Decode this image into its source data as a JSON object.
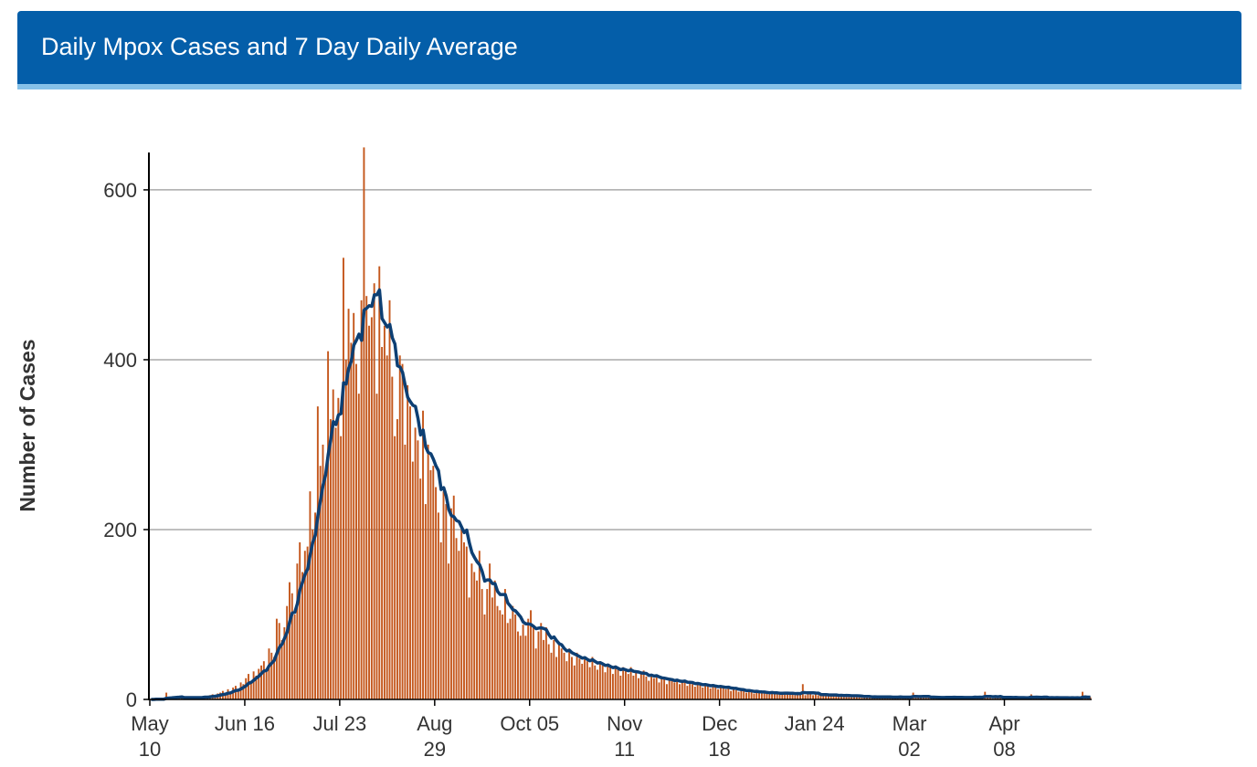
{
  "header": {
    "title": "Daily Mpox Cases and 7 Day Daily Average"
  },
  "chart_data": {
    "type": "bar",
    "title": "Daily Mpox Cases and 7 Day Daily Average",
    "xlabel": "",
    "ylabel": "Number of Cases",
    "ylim": [
      0,
      644
    ],
    "y_ticks": [
      "0",
      "200",
      "400",
      "600"
    ],
    "x_ticks": [
      [
        "May",
        "10"
      ],
      [
        "Jun 16",
        ""
      ],
      [
        "Jul 23",
        ""
      ],
      [
        "Aug",
        "29"
      ],
      [
        "Oct 05",
        ""
      ],
      [
        "Nov",
        "11"
      ],
      [
        "Dec",
        "18"
      ],
      [
        "Jan 24",
        ""
      ],
      [
        "Mar",
        "02"
      ],
      [
        "Apr",
        "08"
      ]
    ],
    "grid": "horizontal",
    "colors": {
      "bars": "#c4571c",
      "average_line": "#0d3f73",
      "header": "#045ea9",
      "grid": "#aaaaaa"
    },
    "series": [
      {
        "kind": "bar",
        "values": [
          0,
          0,
          1,
          0,
          0,
          1,
          8,
          1,
          2,
          3,
          2,
          2,
          3,
          2,
          1,
          2,
          3,
          2,
          2,
          3,
          3,
          4,
          2,
          5,
          6,
          3,
          7,
          8,
          10,
          5,
          12,
          9,
          14,
          16,
          10,
          20,
          18,
          25,
          30,
          22,
          33,
          28,
          36,
          40,
          45,
          35,
          60,
          55,
          50,
          95,
          90,
          70,
          85,
          110,
          138,
          125,
          100,
          160,
          185,
          150,
          175,
          180,
          245,
          200,
          220,
          345,
          275,
          300,
          265,
          410,
          330,
          365,
          320,
          355,
          310,
          520,
          400,
          460,
          420,
          455,
          395,
          360,
          470,
          650,
          475,
          440,
          450,
          490,
          360,
          510,
          415,
          440,
          405,
          470,
          380,
          310,
          330,
          405,
          395,
          300,
          370,
          345,
          280,
          320,
          305,
          260,
          340,
          230,
          300,
          270,
          275,
          250,
          220,
          185,
          245,
          230,
          160,
          225,
          240,
          190,
          175,
          200,
          185,
          180,
          120,
          160,
          150,
          140,
          175,
          130,
          100,
          130,
          160,
          120,
          140,
          110,
          105,
          100,
          130,
          90,
          95,
          110,
          100,
          80,
          75,
          88,
          75,
          95,
          105,
          85,
          60,
          80,
          90,
          70,
          85,
          65,
          55,
          70,
          50,
          65,
          60,
          55,
          45,
          60,
          50,
          40,
          55,
          48,
          42,
          50,
          45,
          38,
          50,
          40,
          35,
          45,
          40,
          32,
          42,
          38,
          30,
          40,
          35,
          28,
          38,
          35,
          30,
          38,
          28,
          32,
          25,
          30,
          34,
          27,
          22,
          30,
          25,
          28,
          20,
          26,
          24,
          18,
          25,
          22,
          20,
          24,
          18,
          22,
          20,
          16,
          21,
          18,
          15,
          20,
          17,
          14,
          18,
          16,
          13,
          17,
          15,
          12,
          16,
          14,
          12,
          15,
          10,
          13,
          11,
          9,
          12,
          10,
          8,
          11,
          9,
          7,
          10,
          8,
          9,
          7,
          8,
          6,
          9,
          7,
          8,
          6,
          7,
          9,
          6,
          8,
          7,
          5,
          7,
          6,
          18,
          5,
          7,
          6,
          5,
          6,
          5,
          7,
          4,
          6,
          5,
          4,
          6,
          5,
          3,
          5,
          4,
          6,
          3,
          4,
          5,
          3,
          4,
          2,
          3,
          4,
          3,
          2,
          4,
          3,
          2,
          3,
          4,
          2,
          3,
          2,
          3,
          2,
          4,
          3,
          2,
          3,
          2,
          8,
          3,
          2,
          3,
          4,
          2,
          3,
          2,
          3,
          1,
          2,
          3,
          2,
          4,
          2,
          3,
          2,
          1,
          3,
          2,
          3,
          2,
          3,
          2,
          4,
          2,
          3,
          2,
          9,
          3,
          2,
          1,
          3,
          2,
          4,
          2,
          3,
          2,
          1,
          2,
          3,
          2,
          2,
          3,
          1,
          2,
          6,
          2,
          3,
          1,
          2,
          3,
          2,
          1,
          3,
          2,
          2,
          1,
          3,
          2,
          1,
          2,
          3,
          1,
          2,
          1,
          9,
          2,
          1,
          3
        ]
      },
      {
        "kind": "line",
        "description_of_values": "7 day average of the daily values"
      }
    ]
  }
}
